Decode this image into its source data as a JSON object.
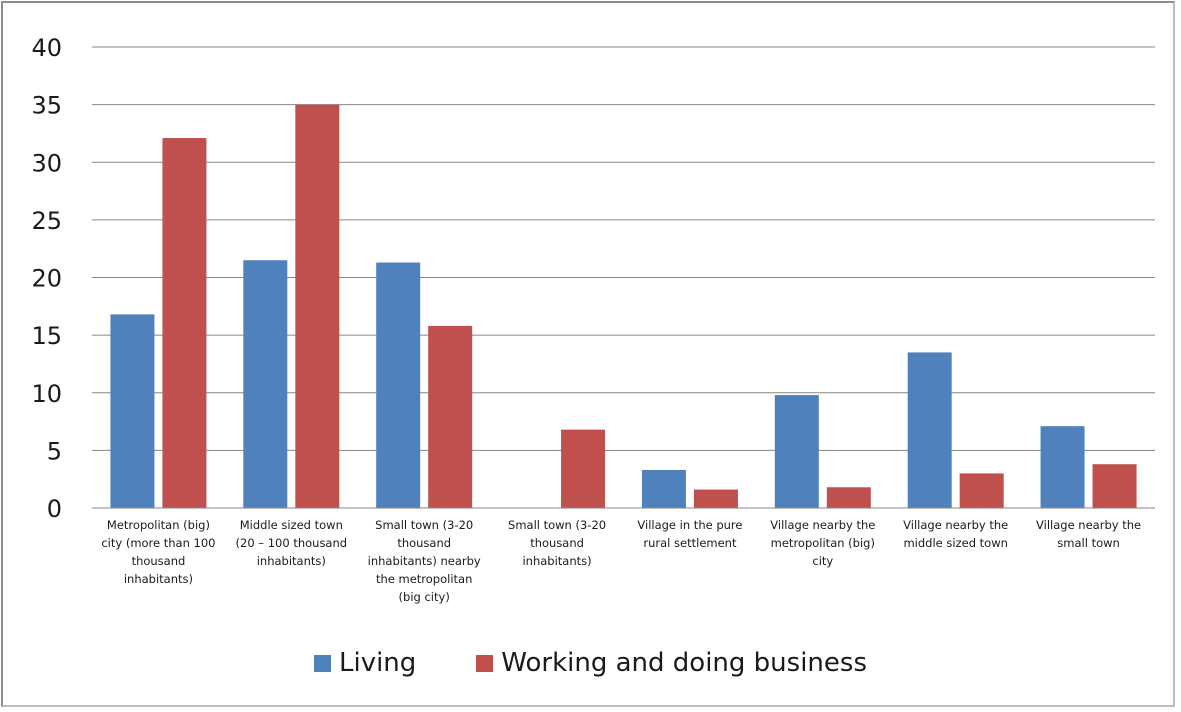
{
  "chart_data": {
    "type": "bar",
    "categories": [
      "Metropolitan (big) city (more than 100 thousand inhabitants)",
      "Middle sized town (20 – 100 thousand inhabitants)",
      "Small town (3-20 thousand inhabitants) nearby the metropolitan (big city)",
      "Small town (3-20 thousand inhabitants)",
      "Village in the pure rural settlement",
      "Village nearby the metropolitan (big) city",
      "Village nearby the middle sized town",
      "Village nearby the small town"
    ],
    "category_lines": [
      [
        "Metropolitan (big)",
        "city (more than 100",
        "thousand",
        "inhabitants)"
      ],
      [
        "Middle sized town",
        "(20 – 100 thousand",
        "inhabitants)"
      ],
      [
        "Small town (3-20",
        "thousand",
        "inhabitants) nearby",
        "the metropolitan",
        "(big city)"
      ],
      [
        "Small town (3-20",
        "thousand",
        "inhabitants)"
      ],
      [
        "Village in the pure",
        "rural settlement"
      ],
      [
        "Village nearby the",
        "metropolitan (big)",
        "city"
      ],
      [
        "Village nearby the",
        "middle sized town"
      ],
      [
        "Village nearby the",
        "small town"
      ]
    ],
    "series": [
      {
        "name": "Living",
        "color": "#4f81bd",
        "values": [
          16.8,
          21.5,
          21.3,
          0,
          3.3,
          9.8,
          13.5,
          7.1
        ]
      },
      {
        "name": "Working and doing business",
        "color": "#c0504d",
        "values": [
          32.1,
          35.0,
          15.8,
          6.8,
          1.6,
          1.8,
          3.0,
          3.8
        ]
      }
    ],
    "ylim": [
      0,
      40
    ],
    "yticks": [
      0,
      5,
      10,
      15,
      20,
      25,
      30,
      35,
      40
    ],
    "title": "",
    "xlabel": "",
    "ylabel": "",
    "grid": true,
    "legend_position": "bottom"
  }
}
